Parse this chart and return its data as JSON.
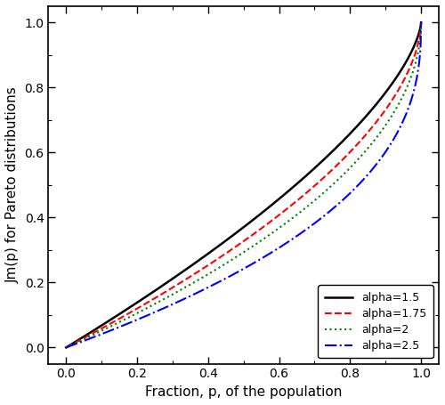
{
  "title": "",
  "xlabel": "Fraction, p, of the population",
  "ylabel": "Jm(p) for Pareto distributions",
  "xlim": [
    -0.05,
    1.05
  ],
  "ylim": [
    -0.05,
    1.05
  ],
  "xticks": [
    -0.0,
    0.2,
    0.4,
    0.6,
    0.8,
    1.0
  ],
  "yticks": [
    0.0,
    0.2,
    0.4,
    0.6,
    0.8,
    1.0
  ],
  "alphas": [
    1.5,
    1.75,
    2.0,
    2.5
  ],
  "line_styles": [
    {
      "color": "black",
      "linestyle": "-",
      "linewidth": 1.8,
      "label": "alpha=1.5"
    },
    {
      "color": "red",
      "linestyle": "--",
      "linewidth": 1.5,
      "label": "alpha=1.75"
    },
    {
      "color": "green",
      "linestyle": ":",
      "linewidth": 1.5,
      "label": "alpha=2"
    },
    {
      "color": "blue",
      "linestyle": "-.",
      "linewidth": 1.5,
      "label": "alpha=2.5"
    }
  ],
  "legend_loc": "lower right",
  "background_color": "#ffffff",
  "n_points": 1000
}
